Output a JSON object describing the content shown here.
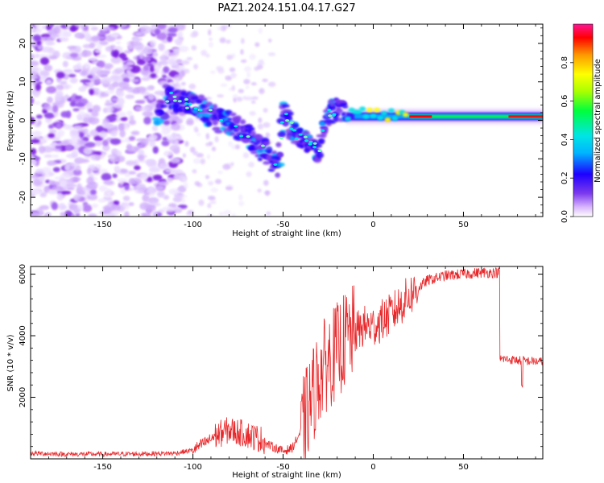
{
  "figure": {
    "title": "PAZ1.2024.151.04.17.G27"
  },
  "chart_data": [
    {
      "type": "heatmap",
      "xlabel": "Height of straight line (km)",
      "ylabel": "Frequency (Hz)",
      "xlim": [
        -190,
        94
      ],
      "ylim": [
        -25,
        25
      ],
      "xticks": [
        -150,
        -100,
        -50,
        0,
        50
      ],
      "yticks": [
        -20,
        -10,
        0,
        10,
        20
      ],
      "colorbar": {
        "label": "Normalized spectral amplitude",
        "ticks": [
          "0.0",
          "0.2",
          "0.4",
          "0.6",
          "0.8"
        ],
        "range": [
          0,
          1
        ],
        "colors": [
          "#ffffff",
          "#d8b4fe",
          "#7c3aed",
          "#1e00ff",
          "#00b4ff",
          "#00e5e5",
          "#00ff3c",
          "#aaff00",
          "#ffff00",
          "#ff9900",
          "#ff0000",
          "#ff1493"
        ]
      },
      "ridge": [
        {
          "x": -115,
          "y": 6
        },
        {
          "x": -105,
          "y": 5
        },
        {
          "x": -95,
          "y": 3
        },
        {
          "x": -85,
          "y": 0
        },
        {
          "x": -75,
          "y": -2
        },
        {
          "x": -65,
          "y": -6
        },
        {
          "x": -58,
          "y": -9
        },
        {
          "x": -52,
          "y": -12
        },
        {
          "x": -50,
          "y": 3
        },
        {
          "x": -45,
          "y": -2
        },
        {
          "x": -40,
          "y": -5
        },
        {
          "x": -35,
          "y": -6
        },
        {
          "x": -30,
          "y": -8
        },
        {
          "x": -25,
          "y": 2
        },
        {
          "x": -20,
          "y": 3
        },
        {
          "x": -15,
          "y": 3
        },
        {
          "x": 0,
          "y": 1
        },
        {
          "x": 20,
          "y": 1
        },
        {
          "x": 50,
          "y": 1
        },
        {
          "x": 94,
          "y": 1
        }
      ]
    },
    {
      "type": "line",
      "xlabel": "Height of straight line (km)",
      "ylabel": "SNR (10 * v/v)",
      "xlim": [
        -190,
        94
      ],
      "ylim": [
        0,
        6250
      ],
      "xticks": [
        -150,
        -100,
        -50,
        0,
        50
      ],
      "yticks": [
        2000,
        4000,
        6000
      ],
      "color": "#e8272a",
      "x": [
        -190,
        -170,
        -150,
        -130,
        -110,
        -100,
        -90,
        -80,
        -70,
        -60,
        -50,
        -45,
        -40,
        -35,
        -30,
        -25,
        -20,
        -15,
        -10,
        -5,
        0,
        10,
        20,
        30,
        40,
        50,
        60,
        70,
        71,
        80,
        94
      ],
      "values": [
        150,
        120,
        120,
        130,
        150,
        250,
        600,
        850,
        700,
        500,
        250,
        350,
        900,
        1800,
        2700,
        3200,
        3500,
        3900,
        4100,
        4300,
        4300,
        4700,
        5300,
        5800,
        5950,
        6000,
        6050,
        6050,
        3250,
        3200,
        3150
      ]
    }
  ]
}
